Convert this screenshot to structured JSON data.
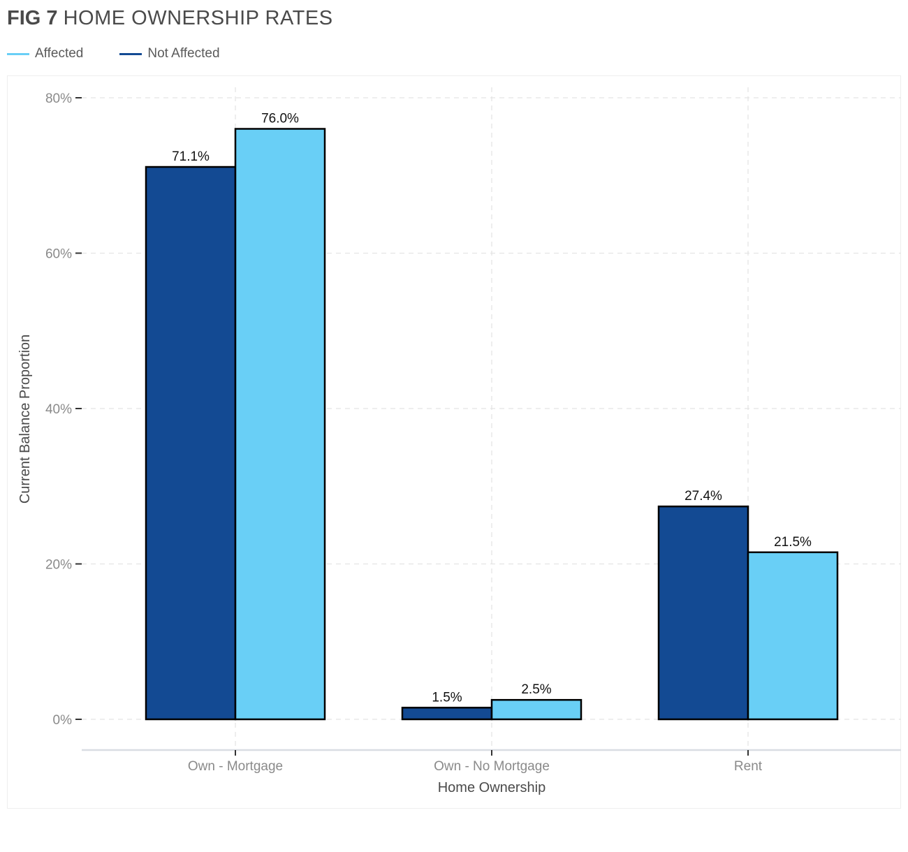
{
  "header": {
    "fig_label": "FIG 7",
    "title": "HOME OWNERSHIP RATES"
  },
  "legend": {
    "items": [
      {
        "label": "Affected",
        "color": "#69CFF6"
      },
      {
        "label": "Not Affected",
        "color": "#134A93"
      }
    ]
  },
  "chart_data": {
    "type": "bar",
    "title": "HOME OWNERSHIP RATES",
    "xlabel": "Home Ownership",
    "ylabel": "Current Balance Proportion",
    "categories": [
      "Own - Mortgage",
      "Own - No Mortgage",
      "Rent"
    ],
    "series": [
      {
        "name": "Not Affected",
        "color": "#134A93",
        "values": [
          71.1,
          1.5,
          27.4
        ],
        "labels": [
          "71.1%",
          "1.5%",
          "27.4%"
        ]
      },
      {
        "name": "Affected",
        "color": "#69CFF6",
        "values": [
          76.0,
          2.5,
          21.5
        ],
        "labels": [
          "76.0%",
          "2.5%",
          "21.5%"
        ]
      }
    ],
    "ylim": [
      0,
      80
    ],
    "yticks": [
      0,
      20,
      40,
      60,
      80
    ],
    "ytick_labels": [
      "0%",
      "20%",
      "40%",
      "60%",
      "80%"
    ],
    "grid": true,
    "legend_position": "top-left"
  }
}
